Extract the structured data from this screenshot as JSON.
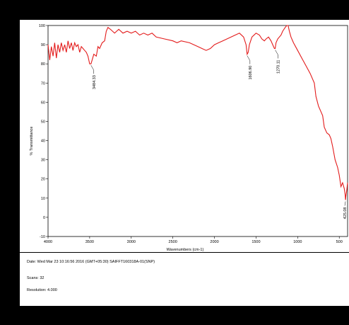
{
  "chart_data": {
    "type": "line",
    "title": "",
    "xlabel": "Wavenumbers (cm-1)",
    "ylabel": "% Transmittance",
    "xlim": [
      4000,
      400
    ],
    "ylim": [
      -10,
      100
    ],
    "x_ticks": [
      "4000",
      "3500",
      "3000",
      "2500",
      "2000",
      "1500",
      "1000",
      "500"
    ],
    "y_ticks": [
      "-10",
      "0",
      "10",
      "20",
      "30",
      "40",
      "50",
      "60",
      "70",
      "80",
      "90",
      "100"
    ],
    "grid": false,
    "colors": {
      "line": "#e31b1b"
    },
    "series": [
      {
        "x": [
          4000,
          3980,
          3960,
          3940,
          3920,
          3900,
          3880,
          3860,
          3840,
          3820,
          3800,
          3780,
          3760,
          3740,
          3720,
          3700,
          3680,
          3660,
          3640,
          3620,
          3600,
          3580,
          3560,
          3540,
          3520,
          3500,
          3484,
          3470,
          3450,
          3420,
          3400,
          3380,
          3350,
          3320,
          3300,
          3280,
          3250,
          3200,
          3150,
          3100,
          3050,
          3000,
          2950,
          2900,
          2850,
          2800,
          2750,
          2700,
          2600,
          2500,
          2450,
          2400,
          2300,
          2200,
          2150,
          2100,
          2050,
          2000,
          1950,
          1900,
          1850,
          1800,
          1750,
          1700,
          1650,
          1620,
          1607,
          1595,
          1580,
          1550,
          1500,
          1460,
          1430,
          1400,
          1380,
          1350,
          1320,
          1300,
          1280,
          1270,
          1260,
          1240,
          1200,
          1180,
          1150,
          1130,
          1115,
          1100,
          1080,
          1050,
          1000,
          950,
          900,
          850,
          800,
          780,
          750,
          700,
          680,
          650,
          620,
          600,
          580,
          550,
          520,
          500,
          480,
          460,
          440,
          430,
          425,
          420,
          410,
          400
        ],
        "y": [
          90,
          82,
          89,
          84,
          91,
          83,
          90,
          86,
          91,
          87,
          90,
          86,
          92,
          88,
          91,
          87,
          91,
          89,
          90,
          86,
          89,
          88,
          87,
          86,
          84,
          80,
          80,
          82,
          85,
          84,
          89,
          88,
          91,
          92,
          97,
          99,
          98,
          96,
          98,
          96,
          97,
          96,
          97,
          95,
          96,
          95,
          96,
          94,
          93,
          92,
          91,
          92,
          91,
          89,
          88,
          87,
          88,
          90,
          91,
          92,
          93,
          94,
          95,
          96,
          94,
          90,
          85,
          86,
          90,
          94,
          96,
          95,
          93,
          92,
          93,
          94,
          92,
          90,
          88,
          88,
          91,
          93,
          95,
          97,
          99,
          101,
          100,
          97,
          94,
          91,
          87,
          83,
          79,
          75,
          70,
          63,
          58,
          53,
          47,
          44,
          43,
          41,
          37,
          30,
          26,
          22,
          16,
          18,
          15,
          12,
          9,
          11,
          14,
          18
        ]
      }
    ],
    "annotations": [
      {
        "label": "3484.33",
        "x": 3484,
        "y": 80
      },
      {
        "label": "1606.90",
        "x": 1607,
        "y": 85
      },
      {
        "label": "1270.11",
        "x": 1270,
        "y": 88
      },
      {
        "label": "425.08",
        "x": 425,
        "y": 9
      }
    ]
  },
  "footer": {
    "date_line": "Date: Wed Mar 23 10:16:56 2016 (GMT+05:30)    SAIFFT160318A-01(SNP)",
    "scans": "Scans: 32",
    "resolution": "Resolution: 4.000"
  }
}
